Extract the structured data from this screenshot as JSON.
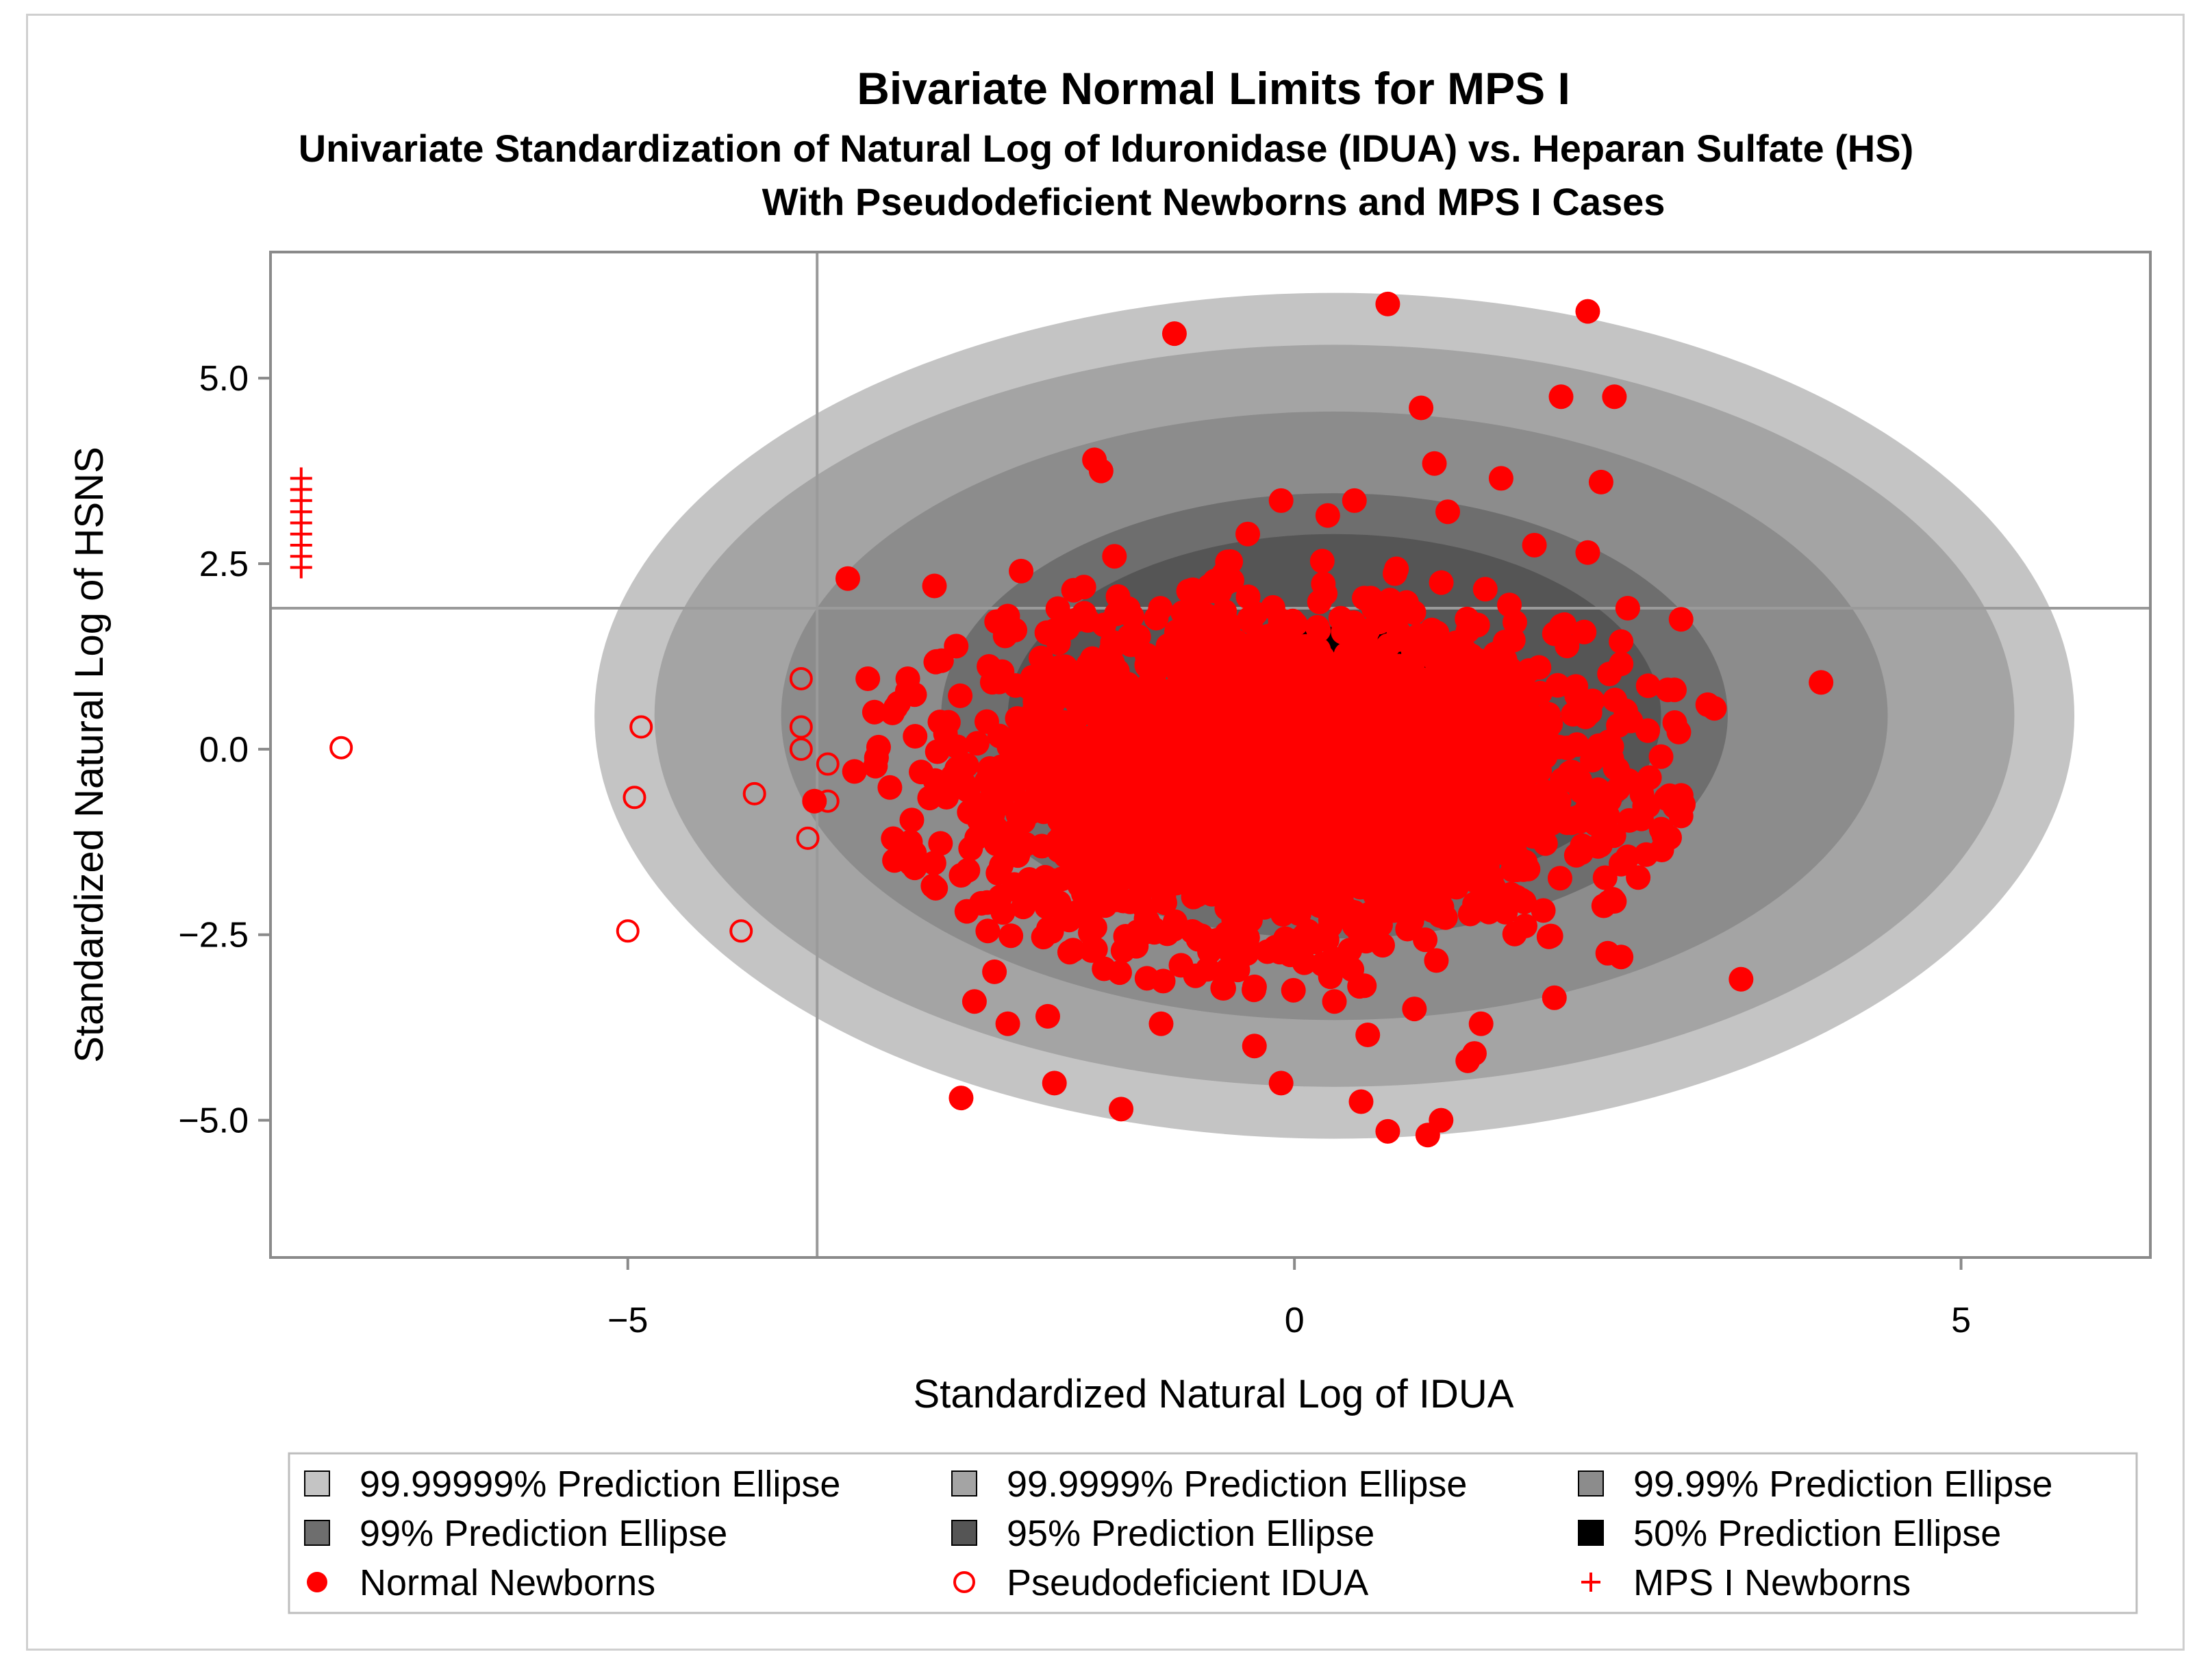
{
  "chart_data": {
    "type": "scatter",
    "title": "Bivariate Normal Limits for MPS I",
    "subtitle_lines": [
      "Univariate Standardization of Natural Log of Iduronidase (IDUA) vs. Heparan Sulfate (HS)",
      "With Pseudodeficient Newborns and MPS I Cases"
    ],
    "xlabel": "Standardized Natural Log of IDUA",
    "ylabel": "Standardized Natural Log of HSNS",
    "xlim": [
      -7.68,
      6.42
    ],
    "ylim": [
      -6.85,
      6.7
    ],
    "x_ticks": [
      {
        "value": -5,
        "label": "−5"
      },
      {
        "value": 0,
        "label": "0"
      },
      {
        "value": 5,
        "label": "5"
      }
    ],
    "y_ticks": [
      {
        "value": 5.0,
        "label": "5.0"
      },
      {
        "value": 2.5,
        "label": "2.5"
      },
      {
        "value": 0.0,
        "label": "0.0"
      },
      {
        "value": -2.5,
        "label": "−2.5"
      },
      {
        "value": -5.0,
        "label": "−5.0"
      }
    ],
    "reference_lines": {
      "x": -3.58,
      "y": 1.9
    },
    "grid": false,
    "legend_position": "bottom",
    "ellipses": [
      {
        "name": "99.99999% Prediction Ellipse",
        "color": "#c4c4c4",
        "cx": 0.3,
        "cy": 0.45,
        "rx": 5.55,
        "ry": 5.7
      },
      {
        "name": "99.9999% Prediction Ellipse",
        "color": "#a4a4a4",
        "cx": 0.3,
        "cy": 0.45,
        "rx": 5.1,
        "ry": 5.0
      },
      {
        "name": "99.99% Prediction Ellipse",
        "color": "#8c8c8c",
        "cx": 0.3,
        "cy": 0.45,
        "rx": 4.15,
        "ry": 4.1
      },
      {
        "name": "99% Prediction Ellipse",
        "color": "#6e6e6e",
        "cx": 0.3,
        "cy": 0.45,
        "rx": 2.95,
        "ry": 3.0
      },
      {
        "name": "95% Prediction Ellipse",
        "color": "#555555",
        "cx": 0.3,
        "cy": 0.45,
        "rx": 2.45,
        "ry": 2.45
      },
      {
        "name": "50% Prediction Ellipse",
        "color": "#000000",
        "cx": 0.3,
        "cy": 0.45,
        "rx": 1.2,
        "ry": 1.2
      }
    ],
    "series": [
      {
        "name": "Normal Newborns",
        "marker": "filled-circle",
        "color": "#ff0000",
        "points": [
          [
            0.7,
            6.0
          ],
          [
            2.2,
            5.9
          ],
          [
            -0.9,
            5.6
          ],
          [
            2.0,
            4.75
          ],
          [
            2.4,
            4.75
          ],
          [
            0.95,
            4.6
          ],
          [
            1.05,
            3.85
          ],
          [
            -1.5,
            3.9
          ],
          [
            -1.45,
            3.75
          ],
          [
            1.55,
            3.65
          ],
          [
            2.3,
            3.6
          ],
          [
            1.15,
            3.2
          ],
          [
            -3.35,
            2.3
          ],
          [
            -2.7,
            2.2
          ],
          [
            -2.05,
            2.4
          ],
          [
            -1.35,
            2.6
          ],
          [
            1.8,
            2.75
          ],
          [
            2.2,
            2.65
          ],
          [
            2.5,
            1.9
          ],
          [
            2.9,
            1.75
          ],
          [
            2.45,
            1.45
          ],
          [
            2.45,
            1.15
          ],
          [
            2.8,
            0.8
          ],
          [
            2.85,
            0.8
          ],
          [
            3.1,
            0.6
          ],
          [
            3.15,
            0.55
          ],
          [
            3.95,
            0.9
          ],
          [
            2.65,
            0.25
          ],
          [
            2.75,
            -0.1
          ],
          [
            2.9,
            -0.9
          ],
          [
            2.35,
            -0.9
          ],
          [
            2.5,
            -1.45
          ],
          [
            2.45,
            -1.55
          ],
          [
            2.4,
            -2.05
          ],
          [
            2.35,
            -2.75
          ],
          [
            2.45,
            -2.8
          ],
          [
            3.35,
            -3.1
          ],
          [
            1.95,
            -3.35
          ],
          [
            1.4,
            -3.7
          ],
          [
            1.35,
            -4.1
          ],
          [
            1.3,
            -4.2
          ],
          [
            1.1,
            -5.0
          ],
          [
            1.0,
            -5.2
          ],
          [
            0.7,
            -5.15
          ],
          [
            0.5,
            -4.75
          ],
          [
            -0.1,
            -4.5
          ],
          [
            -1.3,
            -4.85
          ],
          [
            -1.8,
            -4.5
          ],
          [
            -2.5,
            -4.7
          ],
          [
            -2.4,
            -3.4
          ],
          [
            -2.15,
            -3.7
          ],
          [
            -1.85,
            -3.6
          ],
          [
            -1.0,
            -3.7
          ],
          [
            -0.3,
            -4.0
          ],
          [
            -3.6,
            -0.7
          ],
          [
            -3.3,
            -0.3
          ],
          [
            -3.15,
            0.5
          ],
          [
            -3.2,
            0.95
          ],
          [
            -2.9,
            0.95
          ],
          [
            -2.85,
            -1.4
          ],
          [
            -2.5,
            -1.7
          ],
          [
            -3.0,
            -1.5
          ],
          [
            -2.3,
            -2.45
          ],
          [
            -2.25,
            -3.0
          ],
          [
            -1.2,
            -2.5
          ],
          [
            0.3,
            -3.4
          ],
          [
            0.9,
            -3.5
          ],
          [
            0.55,
            -3.85
          ],
          [
            -0.1,
            3.35
          ],
          [
            0.25,
            3.15
          ],
          [
            0.45,
            3.35
          ],
          [
            -0.35,
            2.9
          ]
        ],
        "central_cloud": {
          "cx": -0.1,
          "cy": -0.35,
          "sx": 1.0,
          "sy": 1.0,
          "count": 3200
        }
      },
      {
        "name": "Pseudodeficient IDUA",
        "marker": "open-circle",
        "color": "#ff0000",
        "points": [
          [
            -7.15,
            0.02
          ],
          [
            -4.9,
            0.3
          ],
          [
            -4.95,
            -0.65
          ],
          [
            -5.0,
            -2.45
          ],
          [
            -4.15,
            -2.45
          ],
          [
            -4.05,
            -0.6
          ],
          [
            -3.7,
            0.95
          ],
          [
            -3.7,
            0.3
          ],
          [
            -3.7,
            0.0
          ],
          [
            -3.5,
            -0.2
          ],
          [
            -3.5,
            -0.7
          ],
          [
            -3.65,
            -1.2
          ]
        ]
      },
      {
        "name": "MPS I Newborns",
        "marker": "plus",
        "color": "#ff0000",
        "points": [
          [
            -7.45,
            3.65
          ],
          [
            -7.45,
            3.5
          ],
          [
            -7.45,
            3.35
          ],
          [
            -7.45,
            3.2
          ],
          [
            -7.45,
            3.05
          ],
          [
            -7.45,
            2.9
          ],
          [
            -7.45,
            2.75
          ],
          [
            -7.45,
            2.6
          ],
          [
            -7.45,
            2.45
          ]
        ]
      }
    ],
    "legend_entries": [
      {
        "label": "99.99999% Prediction Ellipse",
        "symbol": "square",
        "color": "#c4c4c4"
      },
      {
        "label": "99.9999% Prediction Ellipse",
        "symbol": "square",
        "color": "#a4a4a4"
      },
      {
        "label": "99.99% Prediction Ellipse",
        "symbol": "square",
        "color": "#8c8c8c"
      },
      {
        "label": "99% Prediction Ellipse",
        "symbol": "square",
        "color": "#6e6e6e"
      },
      {
        "label": "95% Prediction Ellipse",
        "symbol": "square",
        "color": "#555555"
      },
      {
        "label": "50% Prediction Ellipse",
        "symbol": "square",
        "color": "#000000"
      },
      {
        "label": "Normal Newborns",
        "symbol": "filled-circle",
        "color": "#ff0000"
      },
      {
        "label": "Pseudodeficient IDUA",
        "symbol": "open-circle",
        "color": "#ff0000"
      },
      {
        "label": "MPS I Newborns",
        "symbol": "plus",
        "color": "#ff0000"
      }
    ]
  }
}
